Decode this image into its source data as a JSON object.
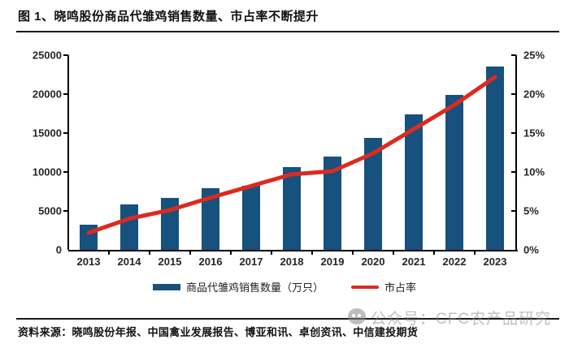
{
  "header": {
    "title": "图 1、晓鸣股份商品代雏鸡销售数量、市占率不断提升"
  },
  "footer": {
    "source": "资料来源：晓鸣股份年报、中国禽业发展报告、博亚和讯、卓创资讯、中信建投期货"
  },
  "watermark": {
    "icon": "wechat-icon",
    "text": "公众号：CFC农产品研究"
  },
  "colors": {
    "bar": "#17517E",
    "line": "#DD2A1E",
    "axis": "#000000",
    "watermark": "#8A8A8A"
  },
  "chart_data": {
    "type": "bar+line",
    "title": "晓鸣股份商品代雏鸡销售数量、市占率",
    "categories": [
      "2013",
      "2014",
      "2015",
      "2016",
      "2017",
      "2018",
      "2019",
      "2020",
      "2021",
      "2022",
      "2023"
    ],
    "series": [
      {
        "name": "商品代雏鸡销售数量（万只）",
        "type": "bar",
        "axis": "left",
        "color": "#17517E",
        "values": [
          3200,
          5800,
          6700,
          7900,
          8200,
          10600,
          12000,
          14400,
          17400,
          19900,
          23500
        ]
      },
      {
        "name": "市占率",
        "type": "line",
        "axis": "right",
        "color": "#DD2A1E",
        "values": [
          2.2,
          4.0,
          5.1,
          6.7,
          8.2,
          9.7,
          10.1,
          12.4,
          15.5,
          18.6,
          22.2
        ]
      }
    ],
    "left_axis": {
      "min": 0,
      "max": 25000,
      "step": 5000,
      "ticks": [
        "0",
        "5000",
        "10000",
        "15000",
        "20000",
        "25000"
      ]
    },
    "right_axis": {
      "min": 0,
      "max": 25,
      "step": 5,
      "ticks": [
        "0%",
        "5%",
        "10%",
        "15%",
        "20%",
        "25%"
      ]
    },
    "grid": false,
    "legend_position": "bottom"
  },
  "legend": {
    "items": [
      {
        "label": "商品代雏鸡销售数量（万只）",
        "swatch": "bar"
      },
      {
        "label": "市占率",
        "swatch": "line"
      }
    ]
  }
}
